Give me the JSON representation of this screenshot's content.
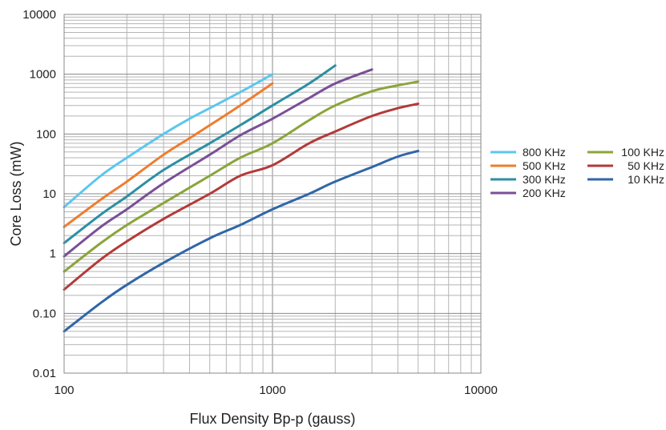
{
  "chart_data": {
    "type": "line",
    "x_scale": "log",
    "y_scale": "log",
    "xlim": [
      100,
      10000
    ],
    "ylim": [
      0.01,
      10000
    ],
    "xlabel": "Flux Density Bp-p (gauss)",
    "ylabel": "Core Loss (mW)",
    "x_ticks": [
      {
        "value": 100,
        "label": "100"
      },
      {
        "value": 1000,
        "label": "1000"
      },
      {
        "value": 10000,
        "label": "10000"
      }
    ],
    "y_ticks": [
      {
        "value": 0.01,
        "label": "0.01"
      },
      {
        "value": 0.1,
        "label": "0.10"
      },
      {
        "value": 1,
        "label": "1"
      },
      {
        "value": 10,
        "label": "10"
      },
      {
        "value": 100,
        "label": "100"
      },
      {
        "value": 1000,
        "label": "1000"
      },
      {
        "value": 10000,
        "label": "10000"
      }
    ],
    "grid": true,
    "legend_position": "right",
    "series": [
      {
        "name": "800 KHz",
        "color": "#5cc6ef",
        "x": [
          100,
          150,
          200,
          300,
          400,
          500,
          700,
          1000
        ],
        "y": [
          6,
          20,
          40,
          100,
          180,
          270,
          500,
          1000
        ]
      },
      {
        "name": "500 KHz",
        "color": "#ee7d2e",
        "x": [
          100,
          150,
          200,
          300,
          400,
          500,
          700,
          1000
        ],
        "y": [
          2.8,
          8,
          16,
          45,
          85,
          140,
          300,
          700
        ]
      },
      {
        "name": "300 KHz",
        "color": "#2d8fa3",
        "x": [
          100,
          150,
          200,
          300,
          500,
          700,
          1000,
          1500,
          2000
        ],
        "y": [
          1.5,
          4.5,
          9,
          25,
          70,
          140,
          300,
          700,
          1400
        ]
      },
      {
        "name": "200 KHz",
        "color": "#7a4f96",
        "x": [
          100,
          150,
          200,
          300,
          500,
          700,
          1000,
          1500,
          2000,
          3000
        ],
        "y": [
          0.9,
          2.8,
          5.5,
          15,
          45,
          95,
          180,
          400,
          700,
          1200
        ]
      },
      {
        "name": "100 KHz",
        "color": "#8aa53a",
        "x": [
          100,
          150,
          200,
          300,
          500,
          700,
          1000,
          1500,
          2000,
          3000,
          4000,
          5000
        ],
        "y": [
          0.5,
          1.5,
          3,
          7,
          20,
          40,
          70,
          170,
          300,
          520,
          650,
          750
        ]
      },
      {
        "name": "50 KHz",
        "color": "#b33a3a",
        "x": [
          100,
          150,
          200,
          300,
          500,
          700,
          1000,
          1500,
          2000,
          3000,
          4000,
          5000
        ],
        "y": [
          0.25,
          0.8,
          1.6,
          3.8,
          10,
          20,
          30,
          70,
          110,
          200,
          270,
          320
        ]
      },
      {
        "name": "10 KHz",
        "color": "#3066a8",
        "x": [
          100,
          150,
          200,
          300,
          500,
          700,
          1000,
          1500,
          2000,
          3000,
          4000,
          5000
        ],
        "y": [
          0.05,
          0.15,
          0.3,
          0.7,
          1.8,
          3,
          5.5,
          10,
          16,
          28,
          42,
          52
        ]
      }
    ]
  }
}
